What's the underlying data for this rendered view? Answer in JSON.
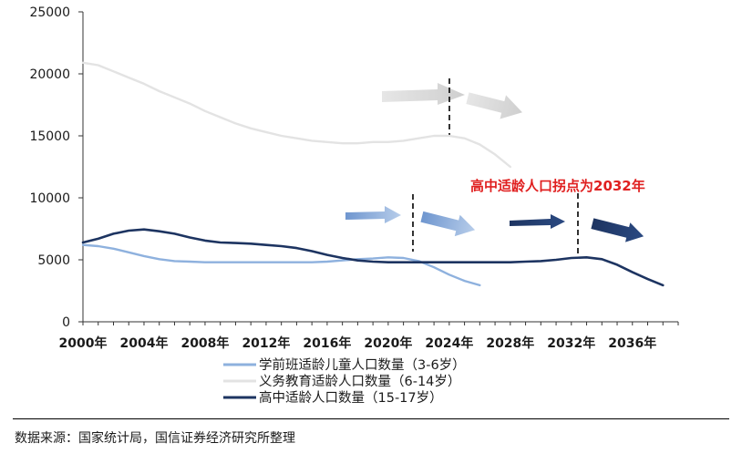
{
  "chart_data": {
    "type": "line",
    "title": "",
    "xlabel": "",
    "ylabel": "",
    "xlim": [
      2000,
      2039
    ],
    "ylim": [
      0,
      25000
    ],
    "y_ticks": [
      0,
      5000,
      10000,
      15000,
      20000,
      25000
    ],
    "y_tick_labels": [
      "0",
      "5000",
      "10000",
      "15000",
      "20000",
      "25000"
    ],
    "x_ticks": [
      2000,
      2004,
      2008,
      2012,
      2016,
      2020,
      2024,
      2028,
      2032,
      2036
    ],
    "x_tick_labels": [
      "2000年",
      "2004年",
      "2008年",
      "2012年",
      "2016年",
      "2020年",
      "2024年",
      "2028年",
      "2032年",
      "2036年"
    ],
    "grid": false,
    "legend_position": "bottom",
    "series": [
      {
        "name": "学前班适龄儿童人口数量（3-6岁）",
        "color": "#8eb1de",
        "x": [
          2000,
          2001,
          2002,
          2003,
          2004,
          2005,
          2006,
          2007,
          2008,
          2009,
          2010,
          2011,
          2012,
          2013,
          2014,
          2015,
          2016,
          2017,
          2018,
          2019,
          2020,
          2021,
          2022,
          2023,
          2024,
          2025,
          2026
        ],
        "y": [
          6200,
          6100,
          5900,
          5600,
          5300,
          5050,
          4900,
          4850,
          4800,
          4800,
          4800,
          4800,
          4800,
          4800,
          4800,
          4800,
          4850,
          4950,
          5050,
          5100,
          5200,
          5150,
          4900,
          4400,
          3800,
          3300,
          2950
        ]
      },
      {
        "name": "义务教育适龄人口数量（6-14岁）",
        "color": "#e3e3e3",
        "x": [
          2000,
          2001,
          2002,
          2003,
          2004,
          2005,
          2006,
          2007,
          2008,
          2009,
          2010,
          2011,
          2012,
          2013,
          2014,
          2015,
          2016,
          2017,
          2018,
          2019,
          2020,
          2021,
          2022,
          2023,
          2024,
          2025,
          2026,
          2027,
          2028
        ],
        "y": [
          20900,
          20700,
          20200,
          19700,
          19200,
          18600,
          18100,
          17600,
          17000,
          16500,
          16000,
          15600,
          15300,
          15000,
          14800,
          14600,
          14500,
          14400,
          14400,
          14500,
          14500,
          14600,
          14800,
          15000,
          15000,
          14800,
          14300,
          13500,
          12500
        ]
      },
      {
        "name": "高中适龄人口数量（15-17岁）",
        "color": "#1d3461",
        "x": [
          2000,
          2001,
          2002,
          2003,
          2004,
          2005,
          2006,
          2007,
          2008,
          2009,
          2010,
          2011,
          2012,
          2013,
          2014,
          2015,
          2016,
          2017,
          2018,
          2019,
          2020,
          2021,
          2022,
          2023,
          2024,
          2025,
          2026,
          2027,
          2028,
          2029,
          2030,
          2031,
          2032,
          2033,
          2034,
          2035,
          2036,
          2037,
          2038
        ],
        "y": [
          6400,
          6700,
          7100,
          7350,
          7450,
          7300,
          7100,
          6800,
          6550,
          6400,
          6350,
          6300,
          6200,
          6100,
          5950,
          5700,
          5400,
          5150,
          4950,
          4850,
          4800,
          4800,
          4800,
          4800,
          4800,
          4800,
          4800,
          4800,
          4800,
          4850,
          4900,
          5000,
          5150,
          5200,
          5050,
          4600,
          4000,
          3450,
          2950
        ]
      }
    ],
    "annotations": [
      {
        "text": "高中适龄人口拐点为2032年",
        "color": "#e02020"
      }
    ]
  },
  "source_note": "数据来源：国家统计局，国信证券经济研究所整理"
}
